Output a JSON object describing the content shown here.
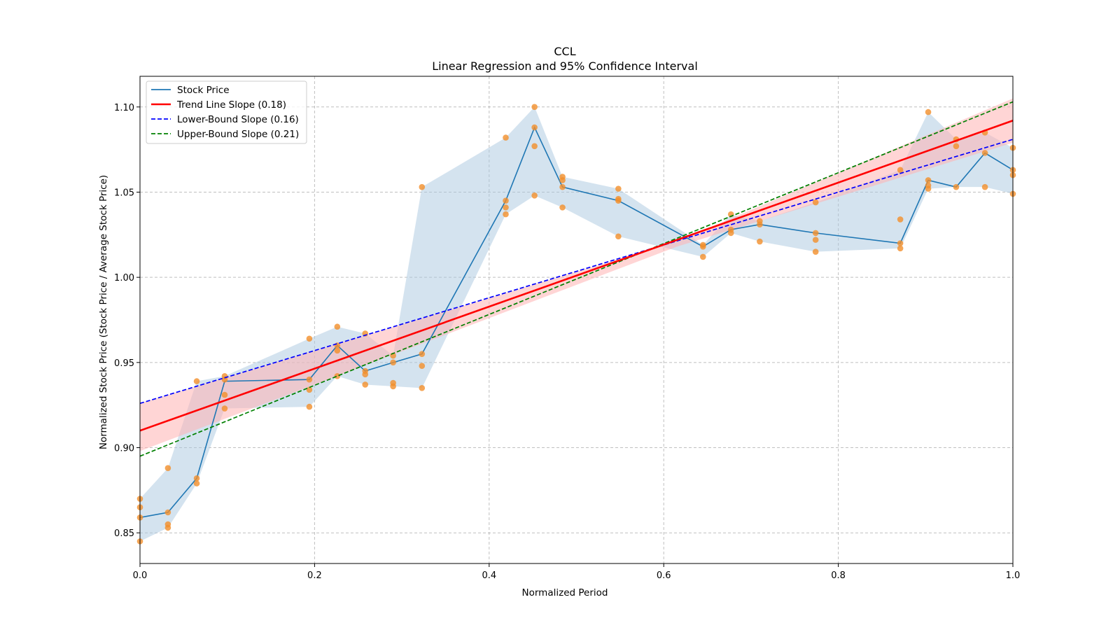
{
  "chart_data": {
    "type": "line",
    "title": "CCL",
    "subtitle": "Linear Regression and 95% Confidence Interval",
    "xlabel": "Normalized Period",
    "ylabel": "Normalized Stock Price (Stock Price / Average Stock Price)",
    "xlim": [
      0.0,
      1.0
    ],
    "ylim": [
      0.832,
      1.118
    ],
    "grid": true,
    "legend_position": "top-left",
    "x_ticks": [
      "0.0",
      "0.2",
      "0.4",
      "0.6",
      "0.8",
      "1.0"
    ],
    "y_ticks": [
      "0.85",
      "0.90",
      "0.95",
      "1.00",
      "1.05",
      "1.10"
    ],
    "legend": [
      {
        "label": "Stock Price",
        "color": "#1f77b4",
        "style": "solid"
      },
      {
        "label": "Trend Line Slope (0.18)",
        "color": "#ff0000",
        "style": "solid"
      },
      {
        "label": "Lower-Bound Slope (0.16)",
        "color": "#0000ff",
        "style": "dashed"
      },
      {
        "label": "Upper-Bound Slope (0.21)",
        "color": "#008000",
        "style": "dashed"
      }
    ],
    "stock_price": {
      "x": [
        0.0,
        0.032,
        0.065,
        0.097,
        0.194,
        0.226,
        0.258,
        0.29,
        0.323,
        0.419,
        0.452,
        0.484,
        0.548,
        0.645,
        0.677,
        0.71,
        0.774,
        0.871,
        0.903,
        0.935,
        0.968,
        1.0
      ],
      "y": [
        0.859,
        0.862,
        0.882,
        0.939,
        0.94,
        0.96,
        0.945,
        0.95,
        0.955,
        1.045,
        1.088,
        1.053,
        1.045,
        1.018,
        1.028,
        1.031,
        1.026,
        1.02,
        1.057,
        1.053,
        1.073,
        1.063
      ]
    },
    "stock_band": {
      "lower": [
        0.845,
        0.853,
        0.879,
        0.923,
        0.924,
        0.942,
        0.937,
        0.936,
        0.935,
        1.037,
        1.048,
        1.041,
        1.024,
        1.012,
        1.026,
        1.021,
        1.015,
        1.017,
        1.052,
        1.053,
        1.053,
        1.049
      ],
      "upper": [
        0.87,
        0.888,
        0.939,
        0.942,
        0.964,
        0.971,
        0.967,
        0.954,
        1.053,
        1.082,
        1.1,
        1.059,
        1.052,
        1.019,
        1.037,
        1.033,
        1.044,
        1.063,
        1.097,
        1.081,
        1.085,
        1.076
      ]
    },
    "scatter_points": [
      [
        0.0,
        0.845
      ],
      [
        0.0,
        0.859
      ],
      [
        0.0,
        0.865
      ],
      [
        0.0,
        0.87
      ],
      [
        0.032,
        0.853
      ],
      [
        0.032,
        0.855
      ],
      [
        0.032,
        0.862
      ],
      [
        0.032,
        0.888
      ],
      [
        0.065,
        0.879
      ],
      [
        0.065,
        0.882
      ],
      [
        0.065,
        0.939
      ],
      [
        0.097,
        0.923
      ],
      [
        0.097,
        0.931
      ],
      [
        0.097,
        0.94
      ],
      [
        0.097,
        0.942
      ],
      [
        0.194,
        0.924
      ],
      [
        0.194,
        0.934
      ],
      [
        0.194,
        0.94
      ],
      [
        0.194,
        0.964
      ],
      [
        0.226,
        0.942
      ],
      [
        0.226,
        0.957
      ],
      [
        0.226,
        0.96
      ],
      [
        0.226,
        0.971
      ],
      [
        0.258,
        0.937
      ],
      [
        0.258,
        0.943
      ],
      [
        0.258,
        0.945
      ],
      [
        0.258,
        0.967
      ],
      [
        0.29,
        0.936
      ],
      [
        0.29,
        0.938
      ],
      [
        0.29,
        0.95
      ],
      [
        0.29,
        0.954
      ],
      [
        0.323,
        0.935
      ],
      [
        0.323,
        0.948
      ],
      [
        0.323,
        0.955
      ],
      [
        0.323,
        1.053
      ],
      [
        0.419,
        1.037
      ],
      [
        0.419,
        1.041
      ],
      [
        0.419,
        1.045
      ],
      [
        0.419,
        1.082
      ],
      [
        0.452,
        1.048
      ],
      [
        0.452,
        1.077
      ],
      [
        0.452,
        1.088
      ],
      [
        0.452,
        1.1
      ],
      [
        0.484,
        1.041
      ],
      [
        0.484,
        1.053
      ],
      [
        0.484,
        1.057
      ],
      [
        0.484,
        1.059
      ],
      [
        0.548,
        1.024
      ],
      [
        0.548,
        1.045
      ],
      [
        0.548,
        1.046
      ],
      [
        0.548,
        1.052
      ],
      [
        0.645,
        1.012
      ],
      [
        0.645,
        1.018
      ],
      [
        0.645,
        1.019
      ],
      [
        0.677,
        1.026
      ],
      [
        0.677,
        1.028
      ],
      [
        0.677,
        1.037
      ],
      [
        0.71,
        1.021
      ],
      [
        0.71,
        1.031
      ],
      [
        0.71,
        1.033
      ],
      [
        0.774,
        1.015
      ],
      [
        0.774,
        1.022
      ],
      [
        0.774,
        1.026
      ],
      [
        0.774,
        1.044
      ],
      [
        0.871,
        1.017
      ],
      [
        0.871,
        1.02
      ],
      [
        0.871,
        1.034
      ],
      [
        0.871,
        1.063
      ],
      [
        0.903,
        1.052
      ],
      [
        0.903,
        1.054
      ],
      [
        0.903,
        1.057
      ],
      [
        0.903,
        1.097
      ],
      [
        0.935,
        1.053
      ],
      [
        0.935,
        1.077
      ],
      [
        0.935,
        1.081
      ],
      [
        0.968,
        1.053
      ],
      [
        0.968,
        1.073
      ],
      [
        0.968,
        1.085
      ],
      [
        1.0,
        1.049
      ],
      [
        1.0,
        1.06
      ],
      [
        1.0,
        1.063
      ],
      [
        1.0,
        1.076
      ]
    ],
    "trend_line": {
      "x": [
        0.0,
        1.0
      ],
      "y": [
        0.91,
        1.092
      ]
    },
    "trend_ci": {
      "x": [
        0.0,
        0.615,
        1.0
      ],
      "lower": [
        0.898,
        1.018,
        1.079
      ],
      "upper": [
        0.926,
        1.021,
        1.105
      ]
    },
    "lower_bound_line": {
      "x": [
        0.0,
        1.0
      ],
      "y": [
        0.926,
        1.081
      ]
    },
    "upper_bound_line": {
      "x": [
        0.0,
        1.0
      ],
      "y": [
        0.895,
        1.103
      ]
    },
    "colors": {
      "stock": "#1f77b4",
      "band": "#a9c8e0",
      "scatter": "#f28e2b",
      "trend": "#ff0000",
      "trend_ci": "#ffb3b3",
      "lower": "#0000ff",
      "upper": "#008000",
      "grid": "#b0b0b0"
    }
  }
}
